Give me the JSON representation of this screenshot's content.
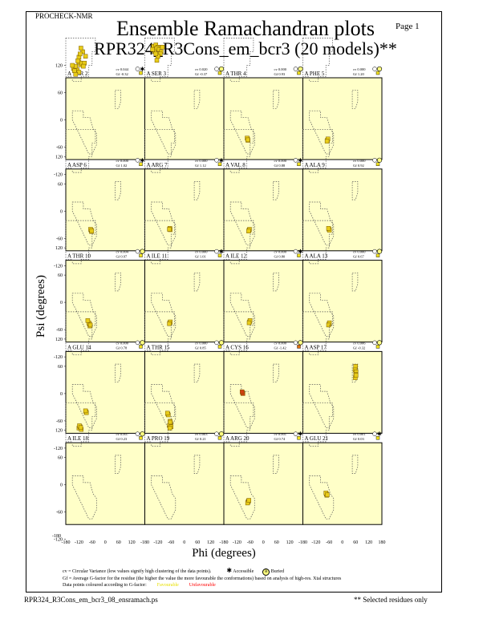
{
  "header": {
    "program": "PROCHECK-NMR",
    "page": "Page  1",
    "title": "Ensemble Ramachandran plots",
    "subtitle": "RPR324_R3Cons_em_bcr3 (20 models)**"
  },
  "axes": {
    "xlabel": "Phi (degrees)",
    "ylabel": "Psi (degrees)",
    "xticks": [
      "-180",
      "-120",
      "-60",
      "0",
      "60",
      "120",
      "180"
    ],
    "yticks": [
      "-180",
      "-120",
      "-60",
      "0",
      "60",
      "120"
    ],
    "panel_yticks": [
      "120",
      "60",
      "0",
      "-60",
      "-120"
    ]
  },
  "legend": {
    "line1": "cv = Circular Variance (low values signify high clustering of the data points).",
    "accessible": "Accessible",
    "buried": "Buried",
    "line2": "Gf = Average G-factor for the residue (the higher the value the more favourable the conformations) based on analysis of high-res. Xtal structures",
    "line3": "Data points coloured according to G-factor:",
    "favourable": "Favourable",
    "unfavourable": "Unfavourable"
  },
  "footer": {
    "filename": "RPR324_R3Cons_em_bcr3_08_ensramach.ps",
    "note": "** Selected residues only"
  },
  "colors": {
    "panel_bg": "#ffffc8",
    "point_fill": "#e8cc18",
    "point_fill_bad": "#d04010",
    "gf_box": "#f0e020",
    "gf_box_bad": "#e07010",
    "favourable": "#e8e000",
    "unfavourable": "#ff0000"
  },
  "chart_data": {
    "type": "scatter",
    "xlim": [
      -180,
      180
    ],
    "ylim": [
      -180,
      180
    ],
    "panels": [
      {
        "residue": "A THR 2",
        "cv": "cv 0.044",
        "gf": "Gf -0.32",
        "buried": false,
        "points": [
          [
            -113,
            121
          ],
          [
            -128,
            110
          ],
          [
            -145,
            113
          ],
          [
            -120,
            127
          ],
          [
            -108,
            125
          ],
          [
            -135,
            118
          ],
          [
            -140,
            108
          ],
          [
            -95,
            125
          ],
          [
            -120,
            138
          ],
          [
            -103,
            150
          ],
          [
            -111,
            158
          ],
          [
            -90,
            140
          ],
          [
            -120,
            105
          ],
          [
            -150,
            120
          ],
          [
            -125,
            130
          ],
          [
            -100,
            118
          ],
          [
            -135,
            100
          ],
          [
            -115,
            145
          ]
        ]
      },
      {
        "residue": "A SER 3",
        "cv": "cv 0.020",
        "gf": "Gf -0.37",
        "buried": true,
        "points": [
          [
            -140,
            162
          ],
          [
            -130,
            165
          ],
          [
            -120,
            160
          ],
          [
            -135,
            150
          ],
          [
            -125,
            158
          ],
          [
            -115,
            155
          ],
          [
            -105,
            150
          ],
          [
            -110,
            145
          ],
          [
            -120,
            140
          ],
          [
            -100,
            160
          ],
          [
            -145,
            155
          ],
          [
            -130,
            145
          ],
          [
            -125,
            131
          ]
        ]
      },
      {
        "residue": "A THR 4",
        "cv": "cv 0.000",
        "gf": "Gf 0.93",
        "buried": true,
        "points": [
          [
            -72,
            -42
          ],
          [
            -70,
            -45
          ],
          [
            -74,
            -40
          ],
          [
            -71,
            -44
          ]
        ]
      },
      {
        "residue": "A PHE 5",
        "cv": "cv 0.000",
        "gf": "Gf 1.20",
        "buried": true,
        "points": [
          [
            -68,
            -45
          ],
          [
            -66,
            -42
          ],
          [
            -70,
            -47
          ]
        ]
      },
      {
        "residue": "A ASP 6",
        "cv": "cv 0.000",
        "gf": "Gf 1.02",
        "buried": false,
        "points": [
          [
            -65,
            -42
          ],
          [
            -63,
            -45
          ],
          [
            -67,
            -40
          ],
          [
            -62,
            -43
          ]
        ]
      },
      {
        "residue": "A ARG 7",
        "cv": "cv 0.000",
        "gf": "Gf 1.12",
        "buried": false,
        "points": [
          [
            -66,
            -38
          ],
          [
            -64,
            -41
          ],
          [
            -68,
            -40
          ]
        ]
      },
      {
        "residue": "A VAL 8",
        "cv": "cv 0.000",
        "gf": "Gf 0.88",
        "buried": false,
        "points": [
          [
            -65,
            -42
          ],
          [
            -63,
            -40
          ],
          [
            -67,
            -44
          ]
        ]
      },
      {
        "residue": "A ALA 9",
        "cv": "cv 0.000",
        "gf": "Gf 0.92",
        "buried": true,
        "points": [
          [
            -61,
            -40
          ],
          [
            -59,
            -42
          ],
          [
            -63,
            -38
          ]
        ]
      },
      {
        "residue": "A THR 10",
        "cv": "cv 0.004",
        "gf": "Gf 0.97",
        "buried": true,
        "points": [
          [
            -72,
            -48
          ],
          [
            -70,
            -52
          ],
          [
            -75,
            -45
          ],
          [
            -68,
            -50
          ],
          [
            -80,
            -40
          ]
        ]
      },
      {
        "residue": "A ILE 11",
        "cv": "cv 0.000",
        "gf": "Gf 1.01",
        "buried": false,
        "points": [
          [
            -66,
            -45
          ],
          [
            -64,
            -43
          ],
          [
            -68,
            -47
          ]
        ]
      },
      {
        "residue": "A ILE 12",
        "cv": "cv 0.000",
        "gf": "Gf 0.80",
        "buried": false,
        "points": [
          [
            -63,
            -43
          ],
          [
            -61,
            -40
          ],
          [
            -65,
            -45
          ]
        ]
      },
      {
        "residue": "A ALA 13",
        "cv": "cv 0.000",
        "gf": "Gf 0.67",
        "buried": true,
        "points": [
          [
            -61,
            -48
          ],
          [
            -59,
            -45
          ],
          [
            -63,
            -50
          ]
        ]
      },
      {
        "residue": "A GLU 14",
        "cv": "cv 0.000",
        "gf": "Gf 0.78",
        "buried": true,
        "points": [
          [
            -88,
            -40
          ],
          [
            -86,
            -42
          ],
          [
            -90,
            -38
          ]
        ]
      },
      {
        "residue": "A THR 15",
        "cv": "cv 0.000",
        "gf": "Gf 0.85",
        "buried": true,
        "points": [
          [
            -75,
            -45
          ],
          [
            -73,
            -47
          ],
          [
            -77,
            -43
          ]
        ]
      },
      {
        "residue": "A CYS 16",
        "cv": "cv 0.000",
        "gf": "Gf -1.42",
        "buried": true,
        "points": [
          [
            -95,
            2
          ],
          [
            -93,
            0
          ],
          [
            -97,
            4
          ]
        ]
      },
      {
        "residue": "A ASP 17",
        "cv": "cv 0.006",
        "gf": "Gf -0.32",
        "buried": true,
        "points": [
          [
            60,
            60
          ],
          [
            58,
            52
          ],
          [
            62,
            48
          ],
          [
            61,
            42
          ],
          [
            59,
            35
          ],
          [
            62,
            40
          ]
        ]
      },
      {
        "residue": "A ILE 18",
        "cv": "cv 0.007",
        "gf": "Gf 0.23",
        "buried": true,
        "points": [
          [
            -120,
            125
          ],
          [
            -115,
            128
          ],
          [
            -110,
            122
          ],
          [
            -118,
            130
          ],
          [
            -112,
            126
          ]
        ]
      },
      {
        "residue": "A PRO 19",
        "cv": "cv 0.003",
        "gf": "Gf 0.21",
        "buried": true,
        "points": [
          [
            -65,
            140
          ],
          [
            -62,
            135
          ],
          [
            -68,
            130
          ],
          [
            -60,
            128
          ],
          [
            -64,
            138
          ],
          [
            -66,
            125
          ]
        ]
      },
      {
        "residue": "A ARG 20",
        "cv": "cv 0.001",
        "gf": "Gf 0.74",
        "buried": false,
        "points": [
          [
            -70,
            -38
          ],
          [
            -68,
            -36
          ],
          [
            -72,
            -40
          ],
          [
            -66,
            -34
          ]
        ]
      },
      {
        "residue": "A GLU 21",
        "cv": "cv 0.001",
        "gf": "Gf 0.03",
        "buried": false,
        "points": [
          [
            -73,
            -20
          ],
          [
            -71,
            -23
          ],
          [
            -75,
            -18
          ],
          [
            -69,
            -22
          ]
        ]
      }
    ]
  }
}
